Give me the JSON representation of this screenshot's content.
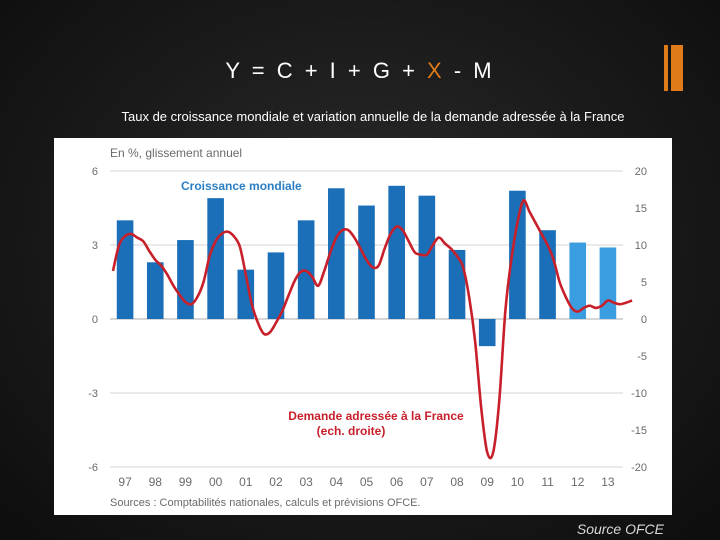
{
  "slide": {
    "title_prefix": "Y = C + I + G + ",
    "title_accent": "X",
    "title_suffix": " - M",
    "subtitle": "Taux de croissance mondiale et variation annuelle de la demande adressée à la France",
    "source_credit": "Source OFCE"
  },
  "colors": {
    "accent": "#e07b1a",
    "bar_dark": "#1a6fb8",
    "bar_light": "#3a9de0",
    "line_red": "#c8202b",
    "label_blue": "#2a7fc4",
    "axis_text": "#6a6a6a",
    "grid": "#d4d4d4"
  },
  "chart_data": {
    "type": "bar+line",
    "unit_label": "En %, glissement annuel",
    "categories": [
      "97",
      "98",
      "99",
      "00",
      "01",
      "02",
      "03",
      "04",
      "05",
      "06",
      "07",
      "08",
      "09",
      "10",
      "11",
      "12",
      "13"
    ],
    "series": [
      {
        "name": "Croissance mondiale",
        "axis": "left",
        "kind": "bar",
        "values": [
          4.0,
          2.3,
          3.2,
          4.9,
          2.0,
          2.7,
          4.0,
          5.3,
          4.6,
          5.4,
          5.0,
          2.8,
          -1.1,
          5.2,
          3.6,
          3.1,
          2.9
        ],
        "forecast_from_index": 15
      },
      {
        "name": "Demande adressée à la France",
        "name_line2": "(ech. droite)",
        "axis": "right",
        "kind": "line",
        "x": [
          96.6,
          96.8,
          97.0,
          97.2,
          97.4,
          97.6,
          97.8,
          98.0,
          98.2,
          98.4,
          98.6,
          98.8,
          99.0,
          99.2,
          99.4,
          99.6,
          99.8,
          100.0,
          100.2,
          100.4,
          100.6,
          100.8,
          101.0,
          101.2,
          101.4,
          101.6,
          101.8,
          102.0,
          102.2,
          102.4,
          102.6,
          102.8,
          103.0,
          103.2,
          103.4,
          103.6,
          103.8,
          104.0,
          104.2,
          104.4,
          104.6,
          104.8,
          105.0,
          105.2,
          105.4,
          105.6,
          105.8,
          106.0,
          106.2,
          106.4,
          106.6,
          106.8,
          107.0,
          107.2,
          107.4,
          107.6,
          107.8,
          108.0,
          108.2,
          108.4,
          108.6,
          108.8,
          109.0,
          109.2,
          109.4,
          109.6,
          109.8,
          110.0,
          110.2,
          110.4,
          110.6,
          110.8,
          111.0,
          111.2,
          111.4,
          111.6,
          111.8,
          112.0,
          112.2,
          112.4,
          112.6,
          112.8,
          113.0,
          113.2,
          113.4,
          113.6,
          113.8
        ],
        "values": [
          6.5,
          10.0,
          11.2,
          11.5,
          11.0,
          10.5,
          9.2,
          8.0,
          7.2,
          6.0,
          4.5,
          3.3,
          2.3,
          2.0,
          3.0,
          5.0,
          8.5,
          10.5,
          11.5,
          11.8,
          11.2,
          9.8,
          6.0,
          2.0,
          -0.5,
          -2.0,
          -1.8,
          -0.5,
          1.0,
          3.0,
          5.0,
          6.3,
          6.5,
          5.7,
          4.5,
          6.5,
          9.0,
          11.0,
          12.0,
          12.0,
          11.0,
          9.5,
          8.0,
          7.0,
          7.2,
          9.5,
          11.5,
          12.5,
          12.0,
          10.5,
          9.0,
          8.7,
          8.7,
          10.0,
          11.0,
          10.2,
          9.5,
          8.5,
          7.0,
          3.0,
          -3.0,
          -12.0,
          -18.0,
          -18.0,
          -11.0,
          1.0,
          8.0,
          13.0,
          16.0,
          14.5,
          13.0,
          11.5,
          10.0,
          8.0,
          5.0,
          3.0,
          1.5,
          1.0,
          1.5,
          1.8,
          1.5,
          1.8,
          2.5,
          2.2,
          2.0,
          2.2,
          2.5
        ]
      }
    ],
    "annotations": {
      "croissance_label": "Croissance mondiale",
      "demande_label_1": "Demande adressée à la France",
      "demande_label_2": "(ech. droite)"
    },
    "left_axis": {
      "min": -6,
      "max": 6,
      "ticks": [
        "6",
        "3",
        "0",
        "-3",
        "-6"
      ],
      "tick_values": [
        6,
        3,
        0,
        -3,
        -6
      ]
    },
    "right_axis": {
      "min": -20,
      "max": 20,
      "ticks": [
        "20",
        "15",
        "10",
        "5",
        "0",
        "-5",
        "-10",
        "-15",
        "-20"
      ],
      "tick_values": [
        20,
        15,
        10,
        5,
        0,
        -5,
        -10,
        -15,
        -20
      ]
    },
    "source_note": "Sources : Comptabilités nationales, calculs et prévisions OFCE."
  }
}
